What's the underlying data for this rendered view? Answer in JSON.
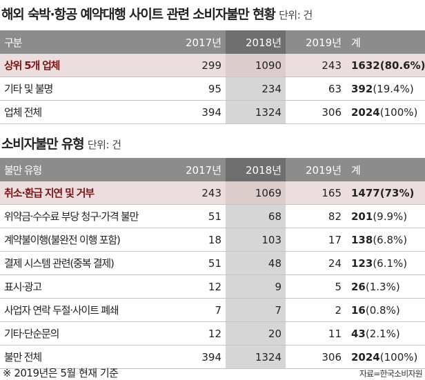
{
  "chart_data": [
    {
      "type": "table",
      "title": "해외 숙박·항공 예약대행 사이트 관련 소비자불만 현황",
      "unit": "단위: 건",
      "columns": [
        "구분",
        "2017년",
        "2018년",
        "2019년",
        "계"
      ],
      "rows": [
        {
          "label": "상위 5개 업체",
          "v2017": "299",
          "v2018": "1090",
          "v2019": "243",
          "total": "1632",
          "pct": "(80.6%)",
          "highlight": true
        },
        {
          "label": "기타 및 불명",
          "v2017": "95",
          "v2018": "234",
          "v2019": "63",
          "total": "392",
          "pct": "(19.4%)",
          "highlight": false
        },
        {
          "label": "업체 전체",
          "v2017": "394",
          "v2018": "1324",
          "v2019": "306",
          "total": "2024",
          "pct": "(100%)",
          "highlight": false
        }
      ]
    },
    {
      "type": "table",
      "title": "소비자불만 유형",
      "unit": "단위: 건",
      "columns": [
        "불만 유형",
        "2017년",
        "2018년",
        "2019년",
        "계"
      ],
      "rows": [
        {
          "label": "취소·환급 지연 및 거부",
          "v2017": "243",
          "v2018": "1069",
          "v2019": "165",
          "total": "1477",
          "pct": "(73%)",
          "highlight": true
        },
        {
          "label": "위약금·수수료 부당 청구·가격 불만",
          "v2017": "51",
          "v2018": "68",
          "v2019": "82",
          "total": "201",
          "pct": "(9.9%)",
          "highlight": false
        },
        {
          "label": "계약불이행(불완전 이행 포함)",
          "v2017": "18",
          "v2018": "103",
          "v2019": "17",
          "total": "138",
          "pct": "(6.8%)",
          "highlight": false
        },
        {
          "label": "결제 시스템 관련(중복 결제)",
          "v2017": "51",
          "v2018": "48",
          "v2019": "24",
          "total": "123",
          "pct": "(6.1%)",
          "highlight": false
        },
        {
          "label": "표시·광고",
          "v2017": "12",
          "v2018": "9",
          "v2019": "5",
          "total": "26",
          "pct": "(1.3%)",
          "highlight": false
        },
        {
          "label": "사업자 연락 두절·사이트 폐쇄",
          "v2017": "7",
          "v2018": "7",
          "v2019": "2",
          "total": "16",
          "pct": "(0.8%)",
          "highlight": false
        },
        {
          "label": "기타·단순문의",
          "v2017": "12",
          "v2018": "20",
          "v2019": "11",
          "total": "43",
          "pct": "(2.1%)",
          "highlight": false
        },
        {
          "label": "불만 전체",
          "v2017": "394",
          "v2018": "1324",
          "v2019": "306",
          "total": "2024",
          "pct": "(100%)",
          "highlight": false
        }
      ]
    }
  ],
  "footnote": "※ 2019년은 5월 현재 기준",
  "source": "자료=한국소비자원"
}
